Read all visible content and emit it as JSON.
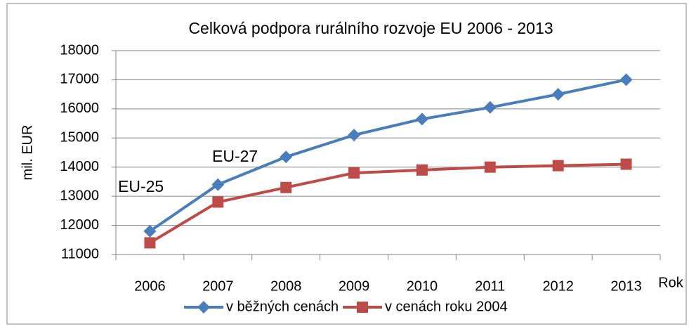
{
  "chart_data": {
    "type": "line",
    "title": "Celková podpora rurálního rozvoje EU 2006 - 2013",
    "y_label": "mil. EUR",
    "x_label": "Rok",
    "categories": [
      "2006",
      "2007",
      "2008",
      "2009",
      "2010",
      "2011",
      "2012",
      "2013"
    ],
    "series": [
      {
        "name": "v běžných cenách",
        "color": "#4a7ebb",
        "marker": "diamond",
        "values": [
          11800,
          13400,
          14350,
          15100,
          15650,
          16050,
          16500,
          17000
        ]
      },
      {
        "name": "v cenách roku 2004",
        "color": "#be4b48",
        "marker": "square",
        "values": [
          11400,
          12800,
          13300,
          13800,
          13900,
          14000,
          14050,
          14100
        ]
      }
    ],
    "annotations": [
      "EU-25",
      "EU-27"
    ],
    "ylim": [
      11000,
      18000
    ],
    "yticks": [
      11000,
      12000,
      13000,
      14000,
      15000,
      16000,
      17000,
      18000
    ],
    "grid": true,
    "legend": "bottom"
  }
}
